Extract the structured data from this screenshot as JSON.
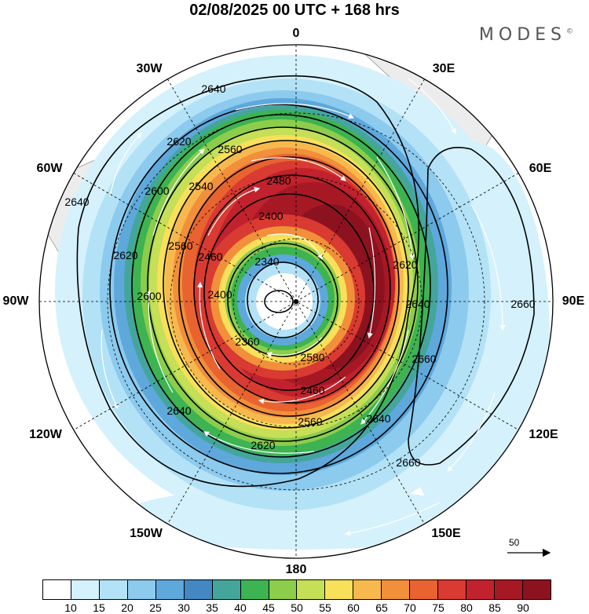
{
  "title": "02/08/2025  00 UTC  + 168 hrs",
  "brand": "MODES",
  "brand_mark": "©",
  "longitudes": {
    "top": "0",
    "bottom": "180",
    "e30": "30E",
    "e60": "60E",
    "e90": "90E",
    "e120": "120E",
    "e150": "150E",
    "w30": "30W",
    "w60": "60W",
    "w90": "90W",
    "w120": "120W",
    "w150": "150W"
  },
  "contours": {
    "c2340": "2340",
    "c2360": "2360",
    "c2400": "2400",
    "c2460": "2460",
    "c2480": "2480",
    "c2540": "2540",
    "c2560": "2560",
    "c2580": "2580",
    "c2600": "2600",
    "c2620": "2620",
    "c2640": "2640",
    "c2660": "2660"
  },
  "wind_reference": "50",
  "colorbar": {
    "colors": [
      "#ffffff",
      "#d5f1fb",
      "#b3e2f6",
      "#8ccaee",
      "#5ea8dc",
      "#4387c3",
      "#44a69a",
      "#3db352",
      "#8ccd4b",
      "#c5df57",
      "#f9e05a",
      "#f7b84e",
      "#f18f3b",
      "#e8632f",
      "#d93a31",
      "#c1222d",
      "#a71825",
      "#8c1220"
    ],
    "labels": [
      "10",
      "15",
      "20",
      "25",
      "30",
      "35",
      "40",
      "45",
      "50",
      "55",
      "60",
      "65",
      "70",
      "75",
      "80",
      "85",
      "90"
    ]
  }
}
